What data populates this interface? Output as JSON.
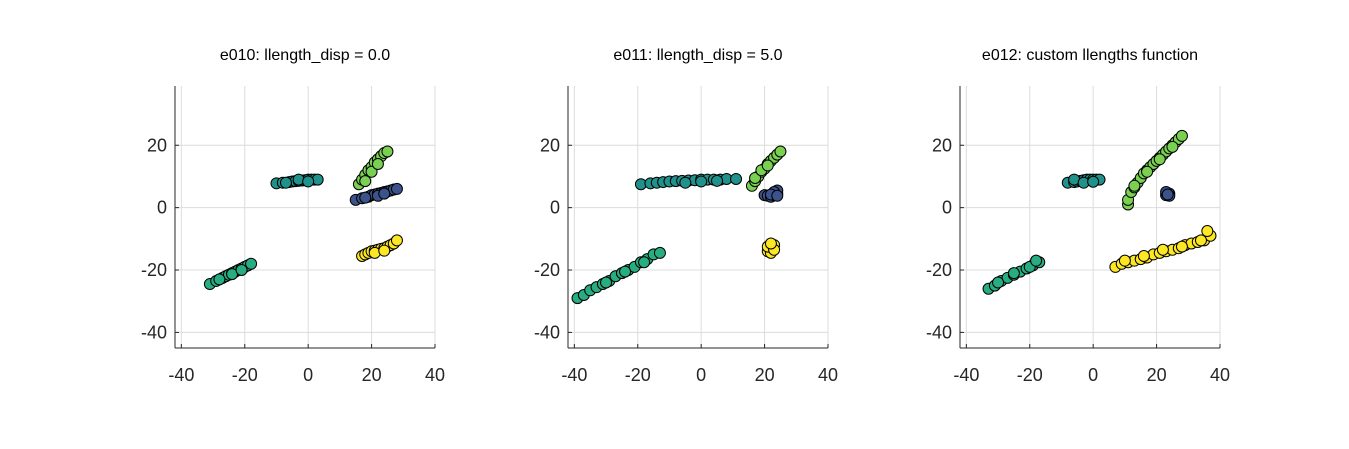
{
  "chart_data": [
    {
      "type": "scatter",
      "title": "e010: llength_disp = 0.0",
      "xlim": [
        -42,
        40
      ],
      "ylim": [
        -45,
        39
      ],
      "xticks": [
        -40,
        -20,
        0,
        20,
        40
      ],
      "yticks": [
        -40,
        -20,
        0,
        20
      ],
      "grid": true,
      "series": [
        {
          "color": "#440154",
          "points": []
        },
        {
          "color": "#3b528b",
          "points": [
            [
              15,
              2.5
            ],
            [
              17,
              3
            ],
            [
              19,
              3.5
            ],
            [
              20,
              4
            ],
            [
              21,
              4.2
            ],
            [
              22,
              4.5
            ],
            [
              23,
              4.7
            ],
            [
              24,
              5
            ],
            [
              25,
              5.2
            ],
            [
              26,
              5.5
            ],
            [
              27,
              5.8
            ],
            [
              28,
              6
            ],
            [
              18,
              3.2
            ],
            [
              22,
              3.8
            ],
            [
              24,
              4.5
            ]
          ]
        },
        {
          "color": "#21918c",
          "points": [
            [
              -10,
              7.8
            ],
            [
              -8,
              8
            ],
            [
              -6,
              8.2
            ],
            [
              -5,
              8.4
            ],
            [
              -4,
              8.5
            ],
            [
              -3,
              8.6
            ],
            [
              -2,
              8.7
            ],
            [
              -1,
              8.8
            ],
            [
              0,
              9
            ],
            [
              1,
              9
            ],
            [
              2,
              9
            ],
            [
              3,
              9
            ],
            [
              -7,
              8
            ],
            [
              -3,
              9
            ],
            [
              0,
              8.4
            ]
          ]
        },
        {
          "color": "#27ad81",
          "points": [
            [
              -31,
              -24.5
            ],
            [
              -29,
              -23.5
            ],
            [
              -27,
              -22.5
            ],
            [
              -26,
              -22
            ],
            [
              -25,
              -21.5
            ],
            [
              -24,
              -21
            ],
            [
              -23,
              -20.5
            ],
            [
              -22,
              -20
            ],
            [
              -21,
              -19.5
            ],
            [
              -20,
              -19
            ],
            [
              -19,
              -18.5
            ],
            [
              -18,
              -18
            ],
            [
              -28,
              -23
            ],
            [
              -24,
              -21.3
            ],
            [
              -21,
              -20
            ]
          ]
        },
        {
          "color": "#7ad151",
          "points": [
            [
              16,
              7.5
            ],
            [
              17,
              9
            ],
            [
              18,
              10.5
            ],
            [
              19,
              12
            ],
            [
              20,
              13
            ],
            [
              21,
              14.5
            ],
            [
              22,
              15.5
            ],
            [
              23,
              16.5
            ],
            [
              24,
              17.5
            ],
            [
              25,
              18
            ],
            [
              18,
              8.5
            ],
            [
              20,
              11.5
            ],
            [
              22,
              14
            ]
          ]
        },
        {
          "color": "#fde725",
          "points": [
            [
              17,
              -15.5
            ],
            [
              18,
              -15
            ],
            [
              19,
              -14.5
            ],
            [
              20,
              -14
            ],
            [
              21,
              -13.8
            ],
            [
              22,
              -13.5
            ],
            [
              23,
              -13.2
            ],
            [
              24,
              -13
            ],
            [
              25,
              -12.5
            ],
            [
              26,
              -12
            ],
            [
              27,
              -11.5
            ],
            [
              28,
              -10.5
            ],
            [
              21,
              -14.5
            ],
            [
              24,
              -13.8
            ]
          ]
        }
      ]
    },
    {
      "type": "scatter",
      "title": "e011: llength_disp = 5.0",
      "xlim": [
        -42,
        40
      ],
      "ylim": [
        -45,
        39
      ],
      "xticks": [
        -40,
        -20,
        0,
        20,
        40
      ],
      "yticks": [
        -40,
        -20,
        0,
        20
      ],
      "grid": true,
      "series": [
        {
          "color": "#3b528b",
          "points": [
            [
              20,
              4
            ],
            [
              21,
              3.8
            ],
            [
              22,
              3.5
            ],
            [
              23,
              4
            ],
            [
              24,
              4.5
            ],
            [
              24,
              5.5
            ],
            [
              23,
              5
            ],
            [
              22,
              4.2
            ],
            [
              24,
              3.8
            ]
          ]
        },
        {
          "color": "#21918c",
          "points": [
            [
              -19,
              7.5
            ],
            [
              -16,
              7.8
            ],
            [
              -14,
              8
            ],
            [
              -12,
              8.2
            ],
            [
              -10,
              8.4
            ],
            [
              -8,
              8.5
            ],
            [
              -6,
              8.6
            ],
            [
              -4,
              8.7
            ],
            [
              -2,
              8.8
            ],
            [
              0,
              9
            ],
            [
              2,
              9
            ],
            [
              4,
              9
            ],
            [
              6,
              9
            ],
            [
              8,
              9.2
            ],
            [
              11,
              9.2
            ],
            [
              -5,
              8
            ],
            [
              0,
              8.4
            ],
            [
              5,
              8.6
            ]
          ]
        },
        {
          "color": "#27ad81",
          "points": [
            [
              -39,
              -29
            ],
            [
              -37,
              -28
            ],
            [
              -35,
              -26.5
            ],
            [
              -33,
              -25.5
            ],
            [
              -31,
              -24.5
            ],
            [
              -29,
              -23.5
            ],
            [
              -27,
              -22
            ],
            [
              -25,
              -21
            ],
            [
              -23,
              -20
            ],
            [
              -21,
              -19
            ],
            [
              -19,
              -17.5
            ],
            [
              -17,
              -16.5
            ],
            [
              -15,
              -15
            ],
            [
              -13,
              -14.5
            ],
            [
              -30,
              -24
            ],
            [
              -24,
              -20.5
            ],
            [
              -18,
              -17.5
            ]
          ]
        },
        {
          "color": "#7ad151",
          "points": [
            [
              16,
              7
            ],
            [
              17,
              8.5
            ],
            [
              18,
              10
            ],
            [
              19,
              11.5
            ],
            [
              20,
              12.5
            ],
            [
              21,
              14
            ],
            [
              22,
              15
            ],
            [
              23,
              16
            ],
            [
              24,
              17
            ],
            [
              25,
              18
            ],
            [
              17,
              9.5
            ],
            [
              19,
              12
            ],
            [
              21,
              13.5
            ]
          ]
        },
        {
          "color": "#fde725",
          "points": [
            [
              21,
              -14
            ],
            [
              22,
              -13
            ],
            [
              23,
              -12
            ],
            [
              22,
              -14.5
            ],
            [
              21,
              -12.5
            ],
            [
              23,
              -13.5
            ],
            [
              22,
              -11.5
            ]
          ]
        }
      ]
    },
    {
      "type": "scatter",
      "title": "e012: custom llengths function",
      "xlim": [
        -42,
        40
      ],
      "ylim": [
        -45,
        39
      ],
      "xticks": [
        -40,
        -20,
        0,
        20,
        40
      ],
      "yticks": [
        -40,
        -20,
        0,
        20
      ],
      "grid": true,
      "series": [
        {
          "color": "#3b528b",
          "points": [
            [
              23,
              4
            ],
            [
              24,
              4.5
            ],
            [
              23,
              5
            ],
            [
              24,
              3.8
            ],
            [
              23.5,
              4.2
            ]
          ]
        },
        {
          "color": "#21918c",
          "points": [
            [
              -8,
              8
            ],
            [
              -6,
              8.2
            ],
            [
              -5,
              8.4
            ],
            [
              -4,
              8.6
            ],
            [
              -3,
              8.8
            ],
            [
              -2,
              9
            ],
            [
              -1,
              9
            ],
            [
              0,
              9
            ],
            [
              1,
              9
            ],
            [
              2,
              9
            ],
            [
              -6,
              9
            ],
            [
              -3,
              8
            ],
            [
              0,
              8.3
            ]
          ]
        },
        {
          "color": "#27ad81",
          "points": [
            [
              -33,
              -26
            ],
            [
              -31,
              -25
            ],
            [
              -29,
              -23.5
            ],
            [
              -27,
              -22.5
            ],
            [
              -25,
              -21.5
            ],
            [
              -23,
              -20.5
            ],
            [
              -21,
              -19.5
            ],
            [
              -19,
              -18.5
            ],
            [
              -17,
              -17.5
            ],
            [
              -30,
              -24
            ],
            [
              -25,
              -21
            ],
            [
              -20,
              -19
            ],
            [
              -18,
              -17
            ]
          ]
        },
        {
          "color": "#7ad151",
          "points": [
            [
              11,
              1
            ],
            [
              11,
              2.5
            ],
            [
              12,
              5
            ],
            [
              13,
              6.5
            ],
            [
              14,
              8
            ],
            [
              15,
              9.5
            ],
            [
              16,
              11
            ],
            [
              17,
              12
            ],
            [
              18,
              13
            ],
            [
              19,
              14
            ],
            [
              20,
              15
            ],
            [
              21,
              16
            ],
            [
              22,
              17
            ],
            [
              23,
              18
            ],
            [
              24,
              19
            ],
            [
              25,
              20
            ],
            [
              26,
              21
            ],
            [
              27,
              22
            ],
            [
              28,
              23
            ],
            [
              13,
              7
            ],
            [
              17,
              11.5
            ],
            [
              21,
              15.5
            ],
            [
              25,
              19.5
            ]
          ]
        },
        {
          "color": "#fde725",
          "points": [
            [
              7,
              -19
            ],
            [
              9,
              -18
            ],
            [
              11,
              -17.5
            ],
            [
              13,
              -17
            ],
            [
              15,
              -16.5
            ],
            [
              17,
              -16
            ],
            [
              19,
              -15
            ],
            [
              21,
              -14.5
            ],
            [
              23,
              -14
            ],
            [
              25,
              -13.5
            ],
            [
              27,
              -13
            ],
            [
              29,
              -12
            ],
            [
              31,
              -11.5
            ],
            [
              33,
              -11
            ],
            [
              35,
              -10.5
            ],
            [
              37,
              -9
            ],
            [
              36,
              -7.5
            ],
            [
              10,
              -17
            ],
            [
              16,
              -15.5
            ],
            [
              22,
              -13.5
            ],
            [
              28,
              -12.5
            ],
            [
              34,
              -10.5
            ]
          ]
        }
      ]
    }
  ]
}
